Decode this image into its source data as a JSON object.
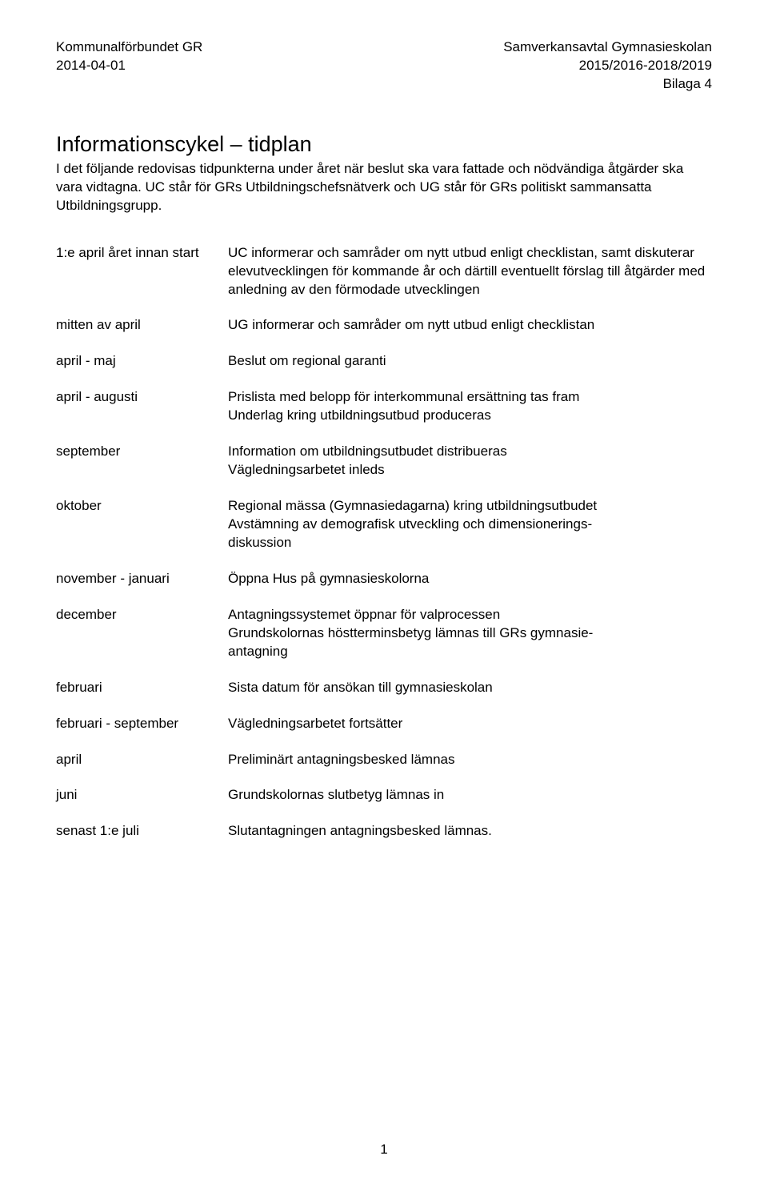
{
  "header": {
    "left_line1": "Kommunalförbundet GR",
    "left_line2": "2014-04-01",
    "right_line1": "Samverkansavtal Gymnasieskolan",
    "right_line2": "2015/2016-2018/2019",
    "right_line3": "Bilaga 4"
  },
  "title": "Informationscykel – tidplan",
  "intro": "I det följande redovisas tidpunkterna under året när beslut ska vara fattade och nödvändiga åtgärder ska vara vidtagna. UC står för GRs Utbildningschefsnätverk och UG står för GRs politiskt sammansatta Utbildningsgrupp.",
  "schedule": [
    {
      "period": "1:e april året innan start",
      "desc": "UC informerar och samråder om nytt utbud enligt checklistan, samt diskuterar elevutvecklingen för kommande år och därtill eventuellt förslag till åtgärder med anledning av den förmodade utvecklingen"
    },
    {
      "period": "mitten av april",
      "desc": "UG informerar och samråder om nytt utbud enligt checklistan"
    },
    {
      "period": "april - maj",
      "desc": "Beslut om regional garanti"
    },
    {
      "period": "april - augusti",
      "desc": "Prislista med belopp för interkommunal ersättning tas fram\nUnderlag kring utbildningsutbud produceras"
    },
    {
      "period": "september",
      "desc": "Information om utbildningsutbudet distribueras\nVägledningsarbetet inleds"
    },
    {
      "period": "oktober",
      "desc": "Regional mässa (Gymnasiedagarna) kring utbildningsutbudet\nAvstämning av demografisk utveckling och dimensionerings-\ndiskussion"
    },
    {
      "period": "november - januari",
      "desc": "Öppna Hus på gymnasieskolorna"
    },
    {
      "period": "december",
      "desc": "Antagningssystemet öppnar för valprocessen\nGrundskolornas höstterminsbetyg lämnas till GRs gymnasie-\nantagning"
    },
    {
      "period": "februari",
      "desc": "Sista datum för ansökan till gymnasieskolan"
    },
    {
      "period": "februari - september",
      "desc": "Vägledningsarbetet fortsätter"
    },
    {
      "period": "april",
      "desc": "Preliminärt antagningsbesked lämnas"
    },
    {
      "period": "juni",
      "desc": "Grundskolornas slutbetyg lämnas in"
    },
    {
      "period": "senast 1:e juli",
      "desc": "Slutantagningen antagningsbesked lämnas."
    }
  ],
  "page_number": "1"
}
